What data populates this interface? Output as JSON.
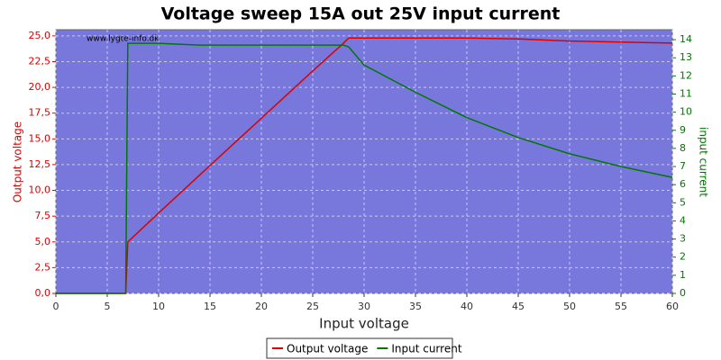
{
  "chart_data": {
    "type": "line",
    "title": "Voltage sweep 15A out 25V input current",
    "watermark": "www.lygte-info.dk",
    "x_label": "Input voltage",
    "y_label": "Output voltage",
    "y2_label": "input current",
    "x": [
      0,
      6.8,
      7,
      10,
      14,
      20,
      25,
      28,
      28.5,
      30,
      35,
      40,
      45,
      50,
      55,
      60
    ],
    "series": [
      {
        "name": "Output voltage",
        "color": "#dd0000",
        "axis": "y",
        "values": [
          0,
          0,
          5,
          7.8,
          11.5,
          17.0,
          21.6,
          24.3,
          24.8,
          24.8,
          24.8,
          24.8,
          24.7,
          24.5,
          24.4,
          24.3
        ]
      },
      {
        "name": "Input current",
        "color": "#007700",
        "axis": "y2",
        "values": [
          0,
          0,
          13.8,
          13.8,
          13.7,
          13.7,
          13.7,
          13.7,
          13.6,
          12.6,
          11.1,
          9.7,
          8.6,
          7.7,
          7.0,
          6.4
        ]
      }
    ],
    "xlim": [
      0,
      60
    ],
    "xticks": [
      0,
      5,
      10,
      15,
      20,
      25,
      30,
      35,
      40,
      45,
      50,
      55,
      60
    ],
    "ylim": [
      0,
      25.6
    ],
    "yticks": [
      {
        "value": 0,
        "label": "0,0"
      },
      {
        "value": 2.5,
        "label": "2,5"
      },
      {
        "value": 5,
        "label": "5,0"
      },
      {
        "value": 7.5,
        "label": "7,5"
      },
      {
        "value": 10,
        "label": "10,0"
      },
      {
        "value": 12.5,
        "label": "12,5"
      },
      {
        "value": 15,
        "label": "15,0"
      },
      {
        "value": 17.5,
        "label": "17,5"
      },
      {
        "value": 20,
        "label": "20,0"
      },
      {
        "value": 22.5,
        "label": "22,5"
      },
      {
        "value": 25,
        "label": "25,0"
      }
    ],
    "y2lim": [
      0,
      14.55
    ],
    "y2ticks": [
      0,
      1,
      2,
      3,
      4,
      5,
      6,
      7,
      8,
      9,
      10,
      11,
      12,
      13,
      14
    ],
    "grid": true,
    "legend": "bottom"
  }
}
